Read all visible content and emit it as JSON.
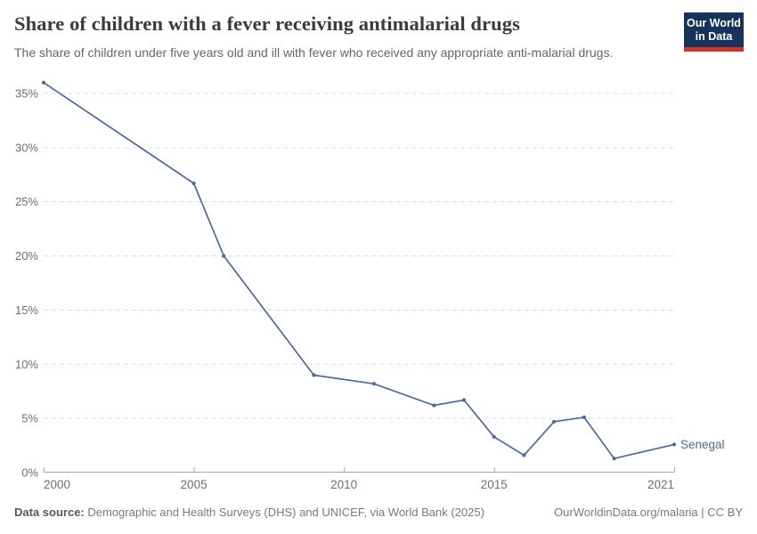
{
  "header": {
    "title": "Share of children with a fever receiving antimalarial drugs",
    "subtitle": "The share of children under five years old and ill with fever who received any appropriate anti-malarial drugs.",
    "logo": {
      "line1": "Our World",
      "line2": "in Data",
      "bg_color": "#16335c",
      "accent_color": "#cf352e"
    }
  },
  "chart_data": {
    "type": "line",
    "title": "Share of children with a fever receiving antimalarial drugs",
    "entity": "Senegal",
    "series": [
      {
        "name": "Senegal",
        "points": [
          {
            "year": 2000,
            "value": 36.0
          },
          {
            "year": 2005,
            "value": 26.7
          },
          {
            "year": 2006,
            "value": 20.0
          },
          {
            "year": 2009,
            "value": 9.0
          },
          {
            "year": 2011,
            "value": 8.2
          },
          {
            "year": 2013,
            "value": 6.2
          },
          {
            "year": 2014,
            "value": 6.7
          },
          {
            "year": 2015,
            "value": 3.3
          },
          {
            "year": 2016,
            "value": 1.6
          },
          {
            "year": 2017,
            "value": 4.7
          },
          {
            "year": 2018,
            "value": 5.1
          },
          {
            "year": 2019,
            "value": 1.3
          },
          {
            "year": 2021,
            "value": 2.6
          }
        ]
      }
    ],
    "xlabel": "",
    "ylabel": "",
    "xlim": [
      2000,
      2021
    ],
    "ylim": [
      0,
      35
    ],
    "x_ticks": [
      2000,
      2005,
      2010,
      2015,
      2021
    ],
    "y_ticks": [
      0,
      5,
      10,
      15,
      20,
      25,
      30,
      35
    ],
    "y_tick_suffix": "%",
    "grid": "horizontal-dashed",
    "legend_position": "end-of-line",
    "line_color": "#4C6A9C",
    "grid_color": "#dcdcdc",
    "axis_color": "#a8a8a8",
    "tick_label_color": "#6e6e6e"
  },
  "footer": {
    "datasource_label": "Data source:",
    "datasource_text": "Demographic and Health Surveys (DHS) and UNICEF, via World Bank (2025)",
    "right_text": "OurWorldinData.org/malaria | CC BY"
  }
}
